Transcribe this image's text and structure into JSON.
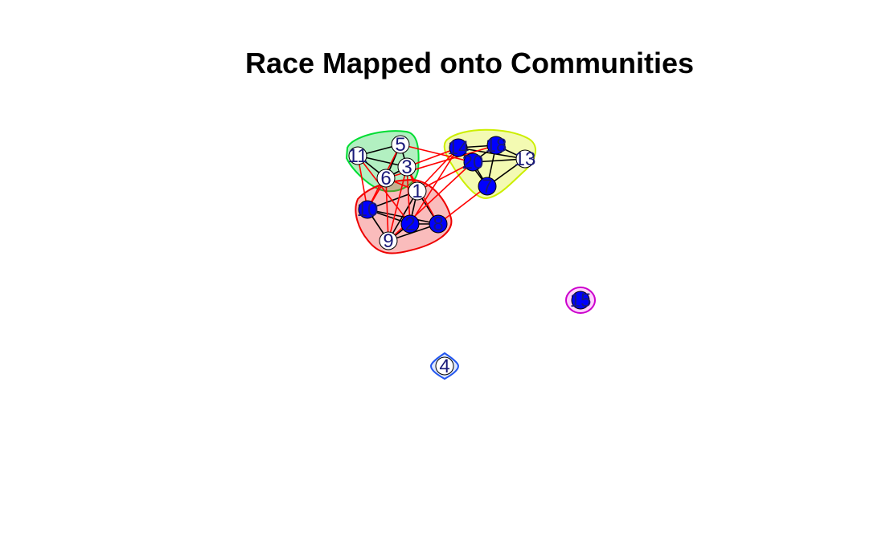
{
  "title": "Race Mapped onto Communities",
  "communities": [
    {
      "id": "green",
      "fill": "#00cc33",
      "stroke": "#00dd33",
      "members": [
        "11",
        "5",
        "3",
        "6"
      ]
    },
    {
      "id": "yellow",
      "fill": "#d6f000",
      "stroke": "#ccee00",
      "members": [
        "14",
        "18",
        "20",
        "13",
        "7"
      ]
    },
    {
      "id": "red",
      "fill": "#ee2222",
      "stroke": "#ee0000",
      "members": [
        "1",
        "10",
        "2",
        "8",
        "9"
      ]
    },
    {
      "id": "magenta",
      "fill": "#ff66ff",
      "stroke": "#cc00cc",
      "members": [
        "15"
      ]
    },
    {
      "id": "blue",
      "fill": "#8fb4ff",
      "stroke": "#2255ee",
      "members": [
        "4"
      ]
    }
  ],
  "vertices": [
    {
      "id": "5",
      "label": "5",
      "color": "#ffffff"
    },
    {
      "id": "11",
      "label": "11",
      "color": "#ffffff"
    },
    {
      "id": "3",
      "label": "3",
      "color": "#ffffff"
    },
    {
      "id": "6",
      "label": "6",
      "color": "#ffffff"
    },
    {
      "id": "1",
      "label": "1",
      "color": "#ffffff"
    },
    {
      "id": "10",
      "label": "10",
      "color": "#0000ff"
    },
    {
      "id": "2",
      "label": "2",
      "color": "#0000ff"
    },
    {
      "id": "8",
      "label": "8",
      "color": "#0000ff"
    },
    {
      "id": "9",
      "label": "9",
      "color": "#ffffff"
    },
    {
      "id": "14",
      "label": "14",
      "color": "#0000ff"
    },
    {
      "id": "18",
      "label": "18",
      "color": "#0000ff"
    },
    {
      "id": "20",
      "label": "20",
      "color": "#0000ff"
    },
    {
      "id": "13",
      "label": "13",
      "color": "#ffffff"
    },
    {
      "id": "7",
      "label": "7",
      "color": "#0000ff"
    },
    {
      "id": "15",
      "label": "15",
      "color": "#0000ff"
    },
    {
      "id": "4",
      "label": "4",
      "color": "#ffffff"
    }
  ],
  "edge_colors": {
    "within": "#000000",
    "between": "#ff0000"
  },
  "edges": [
    [
      "11",
      "5"
    ],
    [
      "11",
      "3"
    ],
    [
      "11",
      "6"
    ],
    [
      "5",
      "3"
    ],
    [
      "5",
      "6"
    ],
    [
      "3",
      "6"
    ],
    [
      "14",
      "18"
    ],
    [
      "14",
      "20"
    ],
    [
      "14",
      "13"
    ],
    [
      "18",
      "20"
    ],
    [
      "18",
      "13"
    ],
    [
      "18",
      "7"
    ],
    [
      "20",
      "13"
    ],
    [
      "20",
      "7"
    ],
    [
      "13",
      "7"
    ],
    [
      "14",
      "7"
    ],
    [
      "1",
      "10"
    ],
    [
      "1",
      "2"
    ],
    [
      "1",
      "8"
    ],
    [
      "1",
      "9"
    ],
    [
      "10",
      "2"
    ],
    [
      "10",
      "9"
    ],
    [
      "10",
      "8"
    ],
    [
      "2",
      "8"
    ],
    [
      "2",
      "9"
    ],
    [
      "8",
      "9"
    ],
    [
      "5",
      "20"
    ],
    [
      "5",
      "10"
    ],
    [
      "3",
      "14"
    ],
    [
      "3",
      "1"
    ],
    [
      "3",
      "2"
    ],
    [
      "3",
      "8"
    ],
    [
      "6",
      "1"
    ],
    [
      "6",
      "10"
    ],
    [
      "6",
      "9"
    ],
    [
      "11",
      "10"
    ],
    [
      "11",
      "2"
    ],
    [
      "1",
      "14"
    ],
    [
      "1",
      "20"
    ],
    [
      "2",
      "14"
    ],
    [
      "8",
      "7"
    ],
    [
      "9",
      "20"
    ],
    [
      "6",
      "18"
    ],
    [
      "3",
      "9"
    ]
  ]
}
